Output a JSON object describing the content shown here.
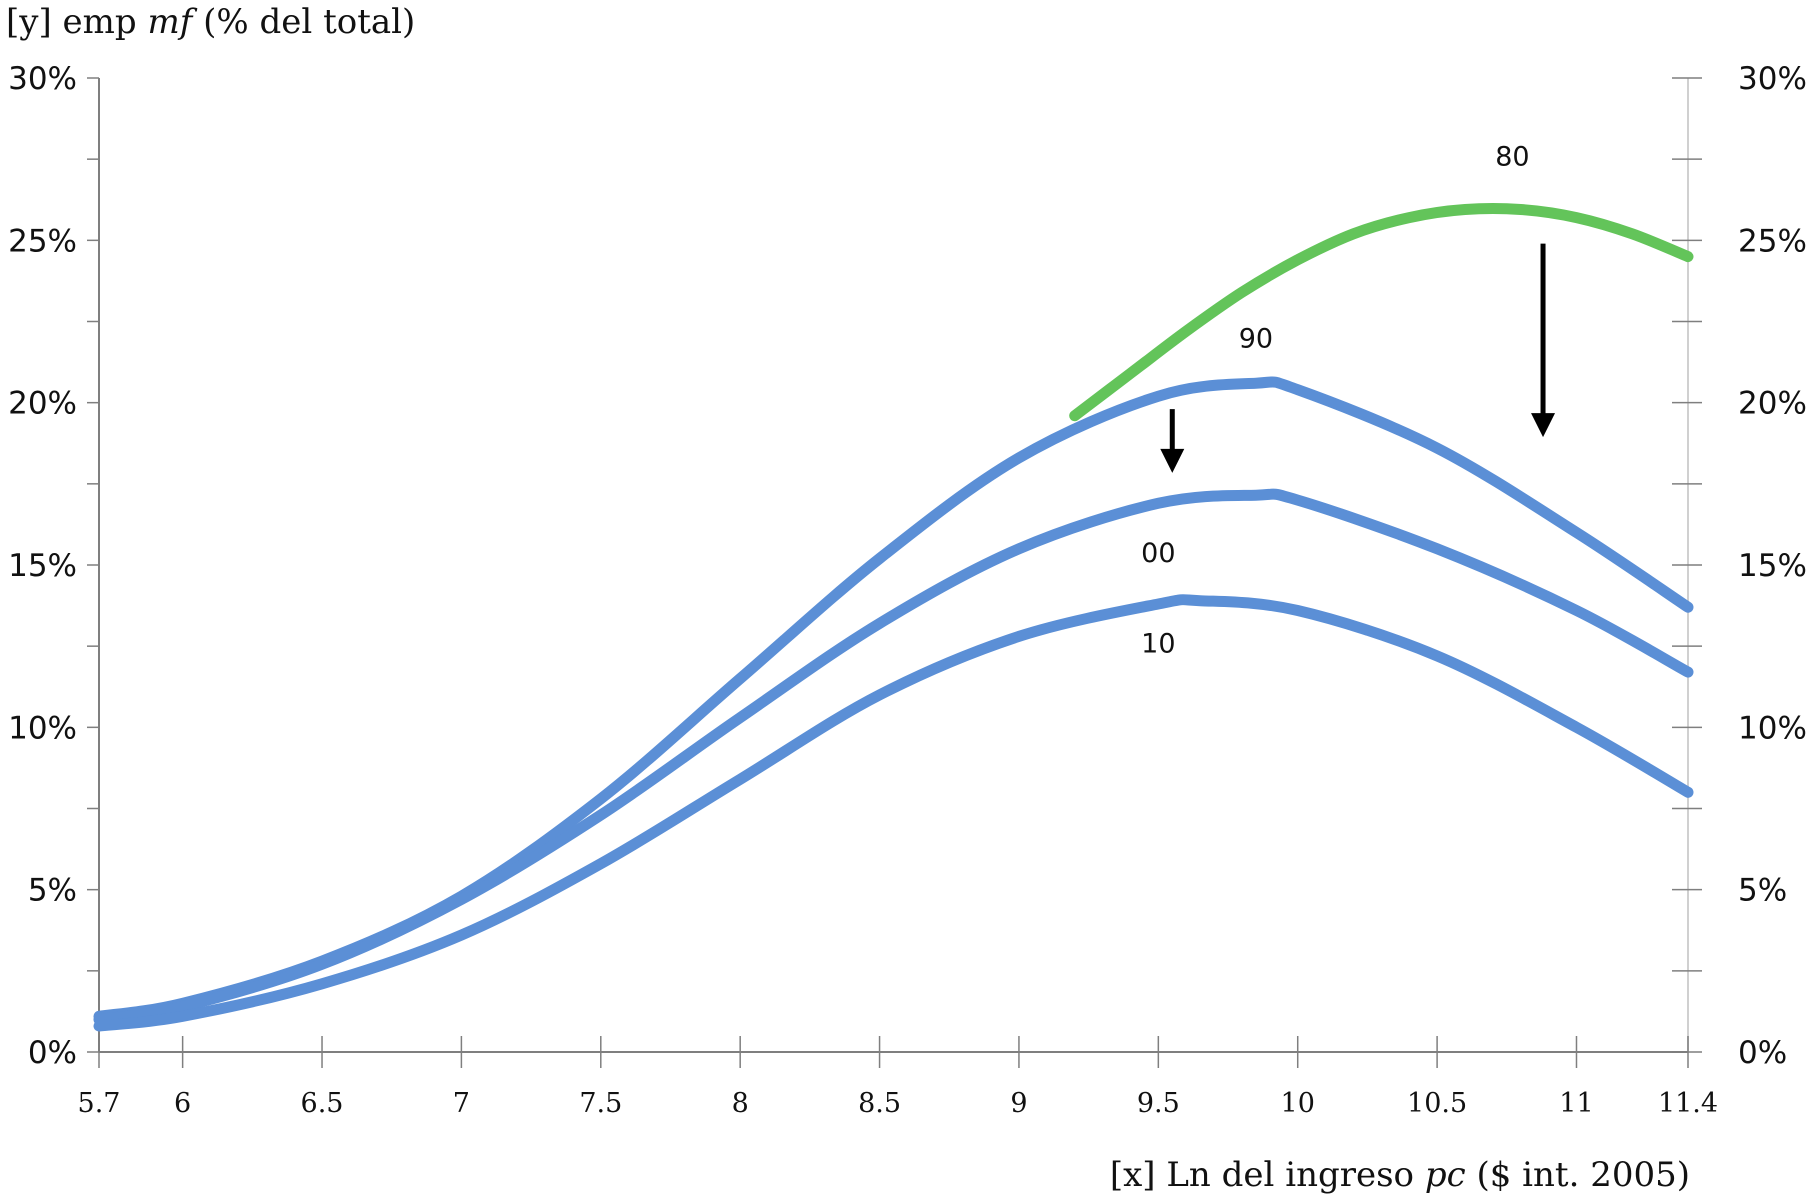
{
  "chart_data": {
    "type": "line",
    "ylabel_parts": {
      "prefix": "[y] emp ",
      "italic": "mf",
      "suffix": " (% del total)"
    },
    "xlabel_parts": {
      "prefix": "[x] Ln del ingreso ",
      "italic": "pc",
      "suffix": " ($ int. 2005)"
    },
    "xlim": [
      5.7,
      11.4
    ],
    "ylim": [
      0,
      30
    ],
    "x_ticks": [
      "5.7",
      "6",
      "6.5",
      "7",
      "7.5",
      "8",
      "8.5",
      "9",
      "9.5",
      "10",
      "10.5",
      "11",
      "11.4"
    ],
    "x_tick_values": [
      5.7,
      6,
      6.5,
      7,
      7.5,
      8,
      8.5,
      9,
      9.5,
      10,
      10.5,
      11,
      11.4
    ],
    "y_ticks_left": [
      "0%",
      "5%",
      "10%",
      "15%",
      "20%",
      "25%",
      "30%"
    ],
    "y_ticks_right": [
      "0%",
      "5%",
      "10%",
      "15%",
      "20%",
      "25%",
      "30%"
    ],
    "y_tick_values": [
      0,
      5,
      10,
      15,
      20,
      25,
      30
    ],
    "colors": {
      "blue": "#5b8fd6",
      "green": "#63c45a",
      "arrow": "#000000",
      "axis": "#7f7f7f",
      "grid": "#d0d0d0"
    },
    "series": [
      {
        "name": "80",
        "color": "#63c45a",
        "x": [
          9.2,
          9.4,
          9.6,
          9.8,
          10.0,
          10.2,
          10.4,
          10.6,
          10.8,
          11.0,
          11.2,
          11.4
        ],
        "y": [
          19.6,
          20.9,
          22.2,
          23.4,
          24.4,
          25.2,
          25.7,
          25.95,
          25.95,
          25.7,
          25.2,
          24.5
        ]
      },
      {
        "name": "90",
        "color": "#5b8fd6",
        "x": [
          5.7,
          6.0,
          6.5,
          7.0,
          7.5,
          8.0,
          8.5,
          9.0,
          9.5,
          9.85,
          10.0,
          10.5,
          11.0,
          11.4
        ],
        "y": [
          1.1,
          1.5,
          2.8,
          4.8,
          7.8,
          11.5,
          15.2,
          18.3,
          20.2,
          20.6,
          20.4,
          18.6,
          16.0,
          13.7
        ]
      },
      {
        "name": "00",
        "color": "#5b8fd6",
        "x": [
          5.7,
          6.0,
          6.5,
          7.0,
          7.5,
          8.0,
          8.5,
          9.0,
          9.5,
          9.85,
          10.0,
          10.5,
          11.0,
          11.4
        ],
        "y": [
          1.0,
          1.4,
          2.7,
          4.7,
          7.3,
          10.3,
          13.2,
          15.5,
          16.9,
          17.15,
          17.0,
          15.5,
          13.6,
          11.7
        ]
      },
      {
        "name": "10",
        "color": "#5b8fd6",
        "x": [
          5.7,
          6.0,
          6.5,
          7.0,
          7.5,
          8.0,
          8.5,
          9.0,
          9.5,
          9.65,
          10.0,
          10.5,
          11.0,
          11.4
        ],
        "y": [
          0.8,
          1.1,
          2.1,
          3.6,
          5.8,
          8.4,
          11.0,
          12.8,
          13.8,
          13.9,
          13.6,
          12.2,
          10.0,
          8.0
        ]
      }
    ],
    "annotations": [
      {
        "type": "arrow",
        "x": 9.55,
        "y_from": 19.8,
        "y_to": 17.9
      },
      {
        "type": "arrow",
        "x": 10.88,
        "y_from": 24.9,
        "y_to": 19.0
      }
    ]
  }
}
